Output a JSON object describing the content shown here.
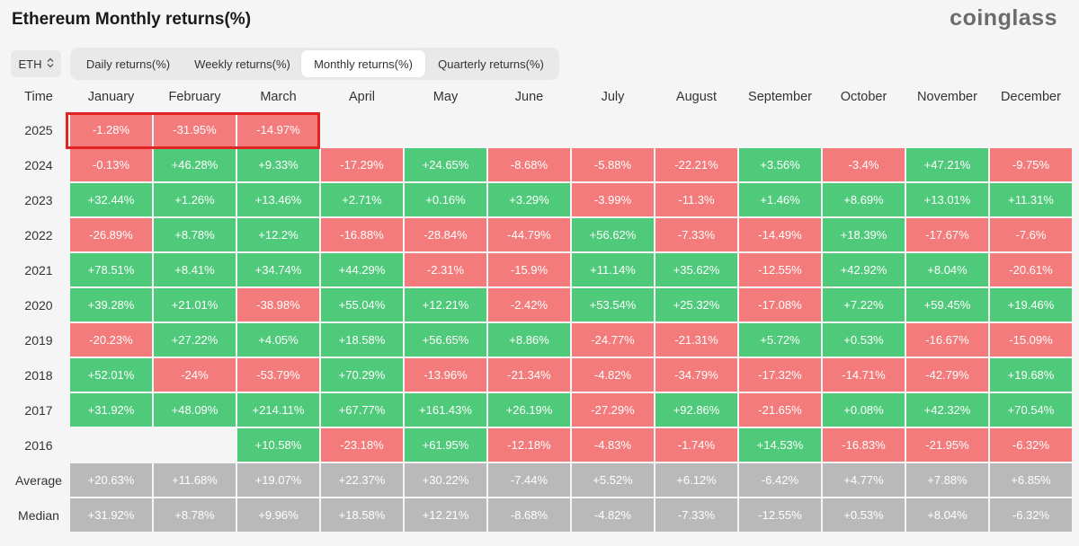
{
  "title": "Ethereum Monthly returns(%)",
  "logo": "coinglass",
  "coin_select": {
    "value": "ETH",
    "icon": "up-down-chevron-icon"
  },
  "tabs": [
    {
      "label": "Daily returns(%)",
      "active": false
    },
    {
      "label": "Weekly returns(%)",
      "active": false
    },
    {
      "label": "Monthly returns(%)",
      "active": true
    },
    {
      "label": "Quarterly returns(%)",
      "active": false
    }
  ],
  "colors": {
    "positive": "#4fca7b",
    "negative": "#f47b7b",
    "summary": "#b9b9b9",
    "highlight": "#e02424"
  },
  "table": {
    "corner": "Time",
    "months": [
      "January",
      "February",
      "March",
      "April",
      "May",
      "June",
      "July",
      "August",
      "September",
      "October",
      "November",
      "December"
    ],
    "rows": [
      {
        "label": "2025",
        "type": "year",
        "cells": [
          "-1.28%",
          "-31.95%",
          "-14.97%",
          "",
          "",
          "",
          "",
          "",
          "",
          "",
          "",
          ""
        ]
      },
      {
        "label": "2024",
        "type": "year",
        "cells": [
          "-0.13%",
          "+46.28%",
          "+9.33%",
          "-17.29%",
          "+24.65%",
          "-8.68%",
          "-5.88%",
          "-22.21%",
          "+3.56%",
          "-3.4%",
          "+47.21%",
          "-9.75%"
        ]
      },
      {
        "label": "2023",
        "type": "year",
        "cells": [
          "+32.44%",
          "+1.26%",
          "+13.46%",
          "+2.71%",
          "+0.16%",
          "+3.29%",
          "-3.99%",
          "-11.3%",
          "+1.46%",
          "+8.69%",
          "+13.01%",
          "+11.31%"
        ]
      },
      {
        "label": "2022",
        "type": "year",
        "cells": [
          "-26.89%",
          "+8.78%",
          "+12.2%",
          "-16.88%",
          "-28.84%",
          "-44.79%",
          "+56.62%",
          "-7.33%",
          "-14.49%",
          "+18.39%",
          "-17.67%",
          "-7.6%"
        ]
      },
      {
        "label": "2021",
        "type": "year",
        "cells": [
          "+78.51%",
          "+8.41%",
          "+34.74%",
          "+44.29%",
          "-2.31%",
          "-15.9%",
          "+11.14%",
          "+35.62%",
          "-12.55%",
          "+42.92%",
          "+8.04%",
          "-20.61%"
        ]
      },
      {
        "label": "2020",
        "type": "year",
        "cells": [
          "+39.28%",
          "+21.01%",
          "-38.98%",
          "+55.04%",
          "+12.21%",
          "-2.42%",
          "+53.54%",
          "+25.32%",
          "-17.08%",
          "+7.22%",
          "+59.45%",
          "+19.46%"
        ]
      },
      {
        "label": "2019",
        "type": "year",
        "cells": [
          "-20.23%",
          "+27.22%",
          "+4.05%",
          "+18.58%",
          "+56.65%",
          "+8.86%",
          "-24.77%",
          "-21.31%",
          "+5.72%",
          "+0.53%",
          "-16.67%",
          "-15.09%"
        ]
      },
      {
        "label": "2018",
        "type": "year",
        "cells": [
          "+52.01%",
          "-24%",
          "-53.79%",
          "+70.29%",
          "-13.96%",
          "-21.34%",
          "-4.82%",
          "-34.79%",
          "-17.32%",
          "-14.71%",
          "-42.79%",
          "+19.68%"
        ]
      },
      {
        "label": "2017",
        "type": "year",
        "cells": [
          "+31.92%",
          "+48.09%",
          "+214.11%",
          "+67.77%",
          "+161.43%",
          "+26.19%",
          "-27.29%",
          "+92.86%",
          "-21.65%",
          "+0.08%",
          "+42.32%",
          "+70.54%"
        ]
      },
      {
        "label": "2016",
        "type": "year",
        "cells": [
          "",
          "",
          "+10.58%",
          "-23.18%",
          "+61.95%",
          "-12.18%",
          "-4.83%",
          "-1.74%",
          "+14.53%",
          "-16.83%",
          "-21.95%",
          "-6.32%"
        ]
      },
      {
        "label": "Average",
        "type": "summary",
        "cells": [
          "+20.63%",
          "+11.68%",
          "+19.07%",
          "+22.37%",
          "+30.22%",
          "-7.44%",
          "+5.52%",
          "+6.12%",
          "-6.42%",
          "+4.77%",
          "+7.88%",
          "+6.85%"
        ]
      },
      {
        "label": "Median",
        "type": "summary",
        "cells": [
          "+31.92%",
          "+8.78%",
          "+9.96%",
          "+18.58%",
          "+12.21%",
          "-8.68%",
          "-4.82%",
          "-7.33%",
          "-12.55%",
          "+0.53%",
          "+8.04%",
          "-6.32%"
        ]
      }
    ]
  }
}
